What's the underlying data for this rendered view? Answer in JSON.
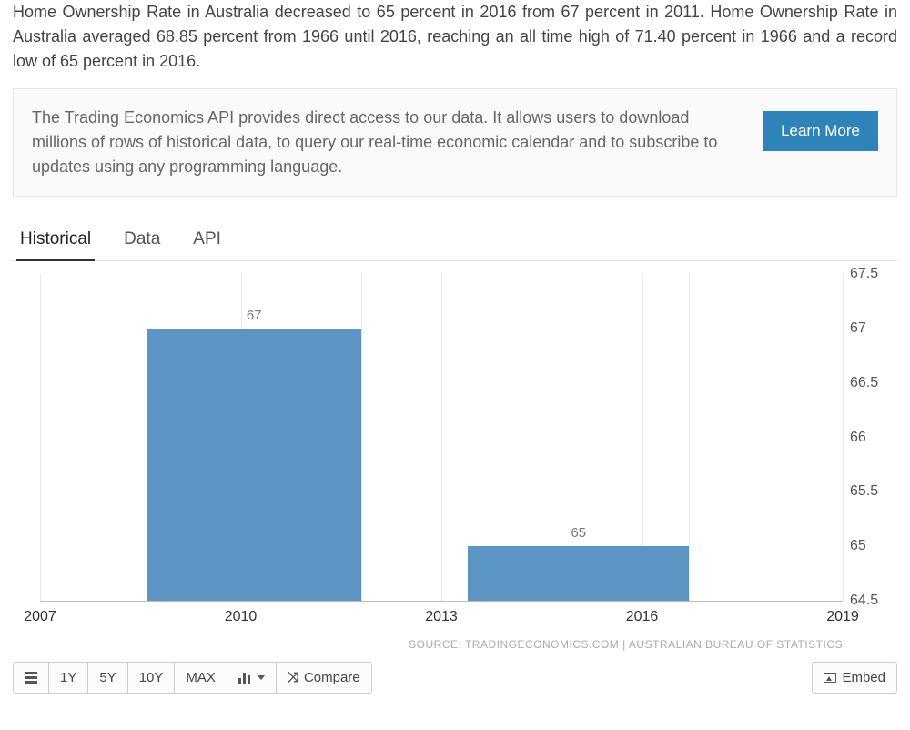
{
  "intro": "Home Ownership Rate in Australia decreased to 65 percent in 2016 from 67 percent in 2011. Home Ownership Rate in Australia averaged 68.85 percent from 1966 until 2016, reaching an all time high of 71.40 percent in 1966 and a record low of 65 percent in 2016.",
  "api_box": {
    "text": "The Trading Economics API provides direct access to our data. It allows users to download millions of rows of historical data, to query our real-time economic calendar and to subscribe to updates using any programming language.",
    "button": "Learn More"
  },
  "tabs": [
    "Historical",
    "Data",
    "API"
  ],
  "active_tab_index": 0,
  "chart": {
    "type": "bar",
    "background_color": "#ffffff",
    "grid_color": "#e8e8e8",
    "bar_color": "#5c94c4",
    "label_color": "#777777",
    "axis_color": "#555555",
    "ylim": [
      64.5,
      67.5
    ],
    "ytick_step": 0.5,
    "yticks": [
      67.5,
      67,
      66.5,
      66,
      65.5,
      65,
      64.5
    ],
    "xticks": [
      2007,
      2010,
      2013,
      2016,
      2019
    ],
    "x_domain": [
      2007,
      2019
    ],
    "bars": [
      {
        "x_start": 2008.6,
        "x_end": 2011.8,
        "value": 67,
        "label": "67"
      },
      {
        "x_start": 2013.4,
        "x_end": 2016.7,
        "value": 65,
        "label": "65"
      }
    ],
    "grid_v_at": [
      2007,
      2010,
      2013,
      2016,
      2019,
      2011.8,
      2016.7
    ]
  },
  "source": "SOURCE: TRADINGECONOMICS.COM | AUSTRALIAN BUREAU OF STATISTICS",
  "toolbar": {
    "ranges": [
      "1Y",
      "5Y",
      "10Y",
      "MAX"
    ],
    "compare": "Compare",
    "embed": "Embed"
  }
}
